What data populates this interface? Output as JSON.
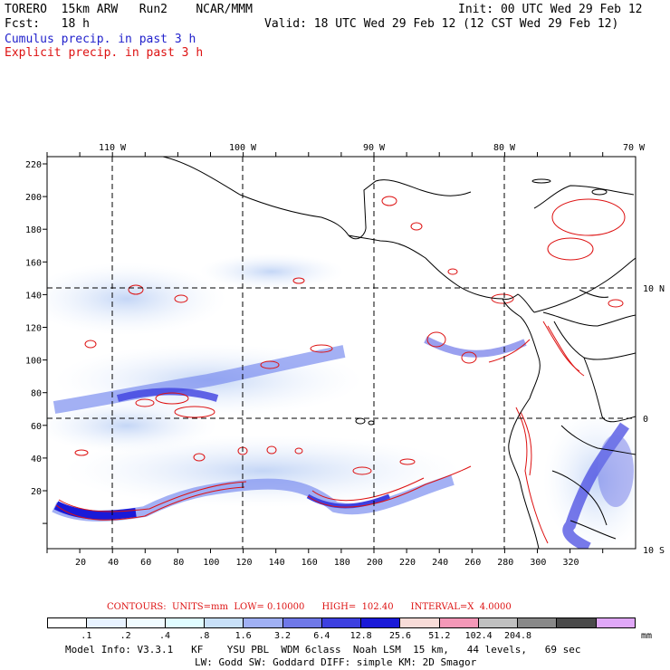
{
  "header": {
    "model": "TORERO  15km ARW   Run2    NCAR/MMM",
    "init": "Init: 00 UTC Wed 29 Feb 12",
    "fcst": "Fcst:   18 h",
    "valid": "Valid: 18 UTC Wed 29 Feb 12 (12 CST Wed 29 Feb 12)",
    "cumulus": "Cumulus precip. in past 3 h",
    "explicit": "Explicit precip. in past 3 h"
  },
  "map": {
    "top_lon_labels": [
      "110 W",
      "100 W",
      "90 W",
      "80 W",
      "70 W"
    ],
    "right_lat_labels": [
      "10 N",
      "0",
      "10 S"
    ],
    "left_y_labels": [
      "220",
      "200",
      "180",
      "160",
      "140",
      "120",
      "100",
      "80",
      "60",
      "40",
      "20"
    ],
    "bottom_x_labels": [
      "20",
      "40",
      "60",
      "80",
      "100",
      "120",
      "140",
      "160",
      "180",
      "200",
      "220",
      "240",
      "260",
      "280",
      "300",
      "320"
    ],
    "colors": {
      "coast": "#000000",
      "explicit": "#dd1111",
      "grid": "#000000"
    }
  },
  "contours": {
    "text": "CONTOURS:  UNITS=mm  LOW= 0.10000      HIGH=  102.40      INTERVAL=X  4.0000"
  },
  "colorbar": {
    "colors": [
      "#ffffff",
      "#e8f2ff",
      "#f0fbff",
      "#e0fcff",
      "#c8e0f8",
      "#a0b0f4",
      "#6f78e8",
      "#3d40e0",
      "#1a1ad8",
      "#f8dcd8",
      "#f498b8",
      "#c0c0c0",
      "#888888",
      "#4a4a4a",
      "#e0a8f8"
    ],
    "labels": [
      ".1",
      ".2",
      ".4",
      ".8",
      "1.6",
      "3.2",
      "6.4",
      "12.8",
      "25.6",
      "51.2",
      "102.4",
      "204.8"
    ],
    "units": "mm"
  },
  "footer": {
    "line1": "Model Info: V3.3.1   KF    YSU PBL  WDM 6class  Noah LSM  15 km,   44 levels,   69 sec",
    "line2": "LW: Godd SW: Goddard DIFF: simple KM: 2D Smagor"
  }
}
